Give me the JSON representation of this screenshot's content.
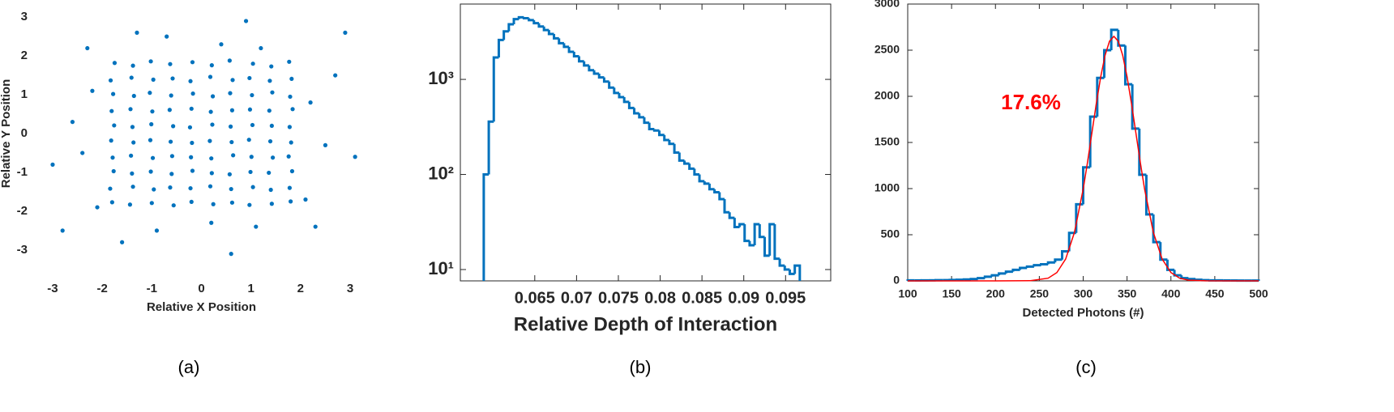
{
  "chart_data": [
    {
      "type": "scatter",
      "caption": "(a)",
      "xlabel": "Relative X Position",
      "ylabel": "Relative Y Position",
      "color": "#0072bd",
      "xlim": [
        -3.4,
        3.4
      ],
      "ylim": [
        -3.4,
        3.4
      ],
      "xticks": [
        -3,
        -2,
        -1,
        0,
        1,
        2,
        3
      ],
      "yticks": [
        -3,
        -2,
        -1,
        0,
        1,
        2,
        3
      ],
      "box": false,
      "x": [
        -1.75,
        -1.38,
        -1.02,
        -0.63,
        -0.18,
        0.21,
        0.57,
        1.04,
        1.41,
        1.77,
        -1.83,
        -1.41,
        -0.97,
        -0.58,
        -0.22,
        0.18,
        0.63,
        0.97,
        1.38,
        1.82,
        -1.78,
        -1.36,
        -1.04,
        -0.61,
        -0.17,
        0.23,
        0.58,
        1.02,
        1.43,
        1.79,
        -1.81,
        -1.43,
        -0.99,
        -0.64,
        -0.2,
        0.19,
        0.62,
        0.98,
        1.37,
        1.84,
        -1.76,
        -1.39,
        -1.01,
        -0.57,
        -0.23,
        0.22,
        0.59,
        1.03,
        1.42,
        1.78,
        -1.82,
        -1.37,
        -1.03,
        -0.62,
        -0.19,
        0.17,
        0.61,
        0.96,
        1.39,
        1.81,
        -1.79,
        -1.42,
        -0.98,
        -0.59,
        -0.21,
        0.2,
        0.64,
        1.01,
        1.44,
        1.76,
        -1.77,
        -1.4,
        -1.02,
        -0.6,
        -0.18,
        0.21,
        0.57,
        0.99,
        1.36,
        1.83,
        -1.84,
        -1.38,
        -0.96,
        -0.63,
        -0.22,
        0.18,
        0.6,
        1.04,
        1.4,
        1.78,
        -1.8,
        -1.44,
        -1,
        -0.56,
        -0.2,
        0.24,
        0.62,
        0.97,
        1.42,
        1.8,
        -2.2,
        -2.4,
        -2.1,
        -2.6,
        -3.0,
        -2.3,
        2.2,
        2.5,
        2.1,
        2.7,
        3.1,
        2.3,
        0.4,
        -0.7,
        1.2,
        -1.3,
        0.2,
        -0.9,
        1.1,
        -1.6,
        0.9,
        -2.8,
        2.9,
        0.6
      ],
      "y": [
        1.82,
        1.75,
        1.86,
        1.79,
        1.84,
        1.76,
        1.88,
        1.8,
        1.73,
        1.85,
        1.37,
        1.44,
        1.39,
        1.42,
        1.35,
        1.46,
        1.38,
        1.43,
        1.36,
        1.41,
        1.02,
        0.97,
        1.05,
        0.98,
        1.03,
        0.96,
        1.04,
        0.99,
        1.06,
        0.95,
        0.58,
        0.63,
        0.57,
        0.61,
        0.64,
        0.56,
        0.6,
        0.62,
        0.59,
        0.63,
        0.21,
        0.17,
        0.24,
        0.19,
        0.16,
        0.23,
        0.18,
        0.22,
        0.2,
        0.17,
        -0.18,
        -0.23,
        -0.17,
        -0.21,
        -0.24,
        -0.19,
        -0.22,
        -0.16,
        -0.2,
        -0.23,
        -0.62,
        -0.57,
        -0.63,
        -0.58,
        -0.61,
        -0.64,
        -0.56,
        -0.6,
        -0.62,
        -0.59,
        -0.97,
        -1.03,
        -0.98,
        -1.04,
        -0.96,
        -1.02,
        -1.05,
        -0.99,
        -1.01,
        -0.97,
        -1.42,
        -1.37,
        -1.44,
        -1.39,
        -1.41,
        -1.36,
        -1.43,
        -1.38,
        -1.45,
        -1.4,
        -1.77,
        -1.83,
        -1.79,
        -1.85,
        -1.76,
        -1.82,
        -1.78,
        -1.84,
        -1.81,
        -1.75,
        1.1,
        -0.5,
        -1.9,
        0.3,
        -0.8,
        2.2,
        0.8,
        -0.3,
        -1.7,
        1.5,
        -0.6,
        -2.4,
        2.3,
        2.5,
        2.2,
        2.6,
        -2.3,
        -2.5,
        -2.4,
        -2.8,
        2.9,
        -2.5,
        2.6,
        -3.1
      ]
    },
    {
      "type": "histogram",
      "caption": "(b)",
      "xlabel": "Relative Depth of Interaction",
      "color": "#0072bd",
      "ylog": true,
      "box": true,
      "xlim": [
        0.0561,
        0.1004
      ],
      "ylim": [
        7.6,
        6200
      ],
      "xticks": [
        0.065,
        0.07,
        0.075,
        0.08,
        0.085,
        0.09,
        0.095
      ],
      "yticks": [
        {
          "value": 10,
          "label": "10¹"
        },
        {
          "value": 100,
          "label": "10²"
        },
        {
          "value": 1000,
          "label": "10³"
        }
      ],
      "bins": [
        0.0589,
        0.0595,
        0.0601,
        0.0607,
        0.0613,
        0.0619,
        0.0625,
        0.0631,
        0.0637,
        0.0643,
        0.0649,
        0.0655,
        0.0661,
        0.0667,
        0.0673,
        0.0679,
        0.0685,
        0.0691,
        0.0697,
        0.0703,
        0.0709,
        0.0715,
        0.0721,
        0.0727,
        0.0733,
        0.0739,
        0.0745,
        0.0751,
        0.0757,
        0.0763,
        0.0769,
        0.0775,
        0.0781,
        0.0787,
        0.0793,
        0.0799,
        0.0805,
        0.0811,
        0.0817,
        0.0823,
        0.0829,
        0.0835,
        0.0841,
        0.0847,
        0.0853,
        0.0859,
        0.0865,
        0.0871,
        0.0877,
        0.0883,
        0.0889,
        0.0895,
        0.0901,
        0.0907,
        0.0913,
        0.0919,
        0.0925,
        0.0931,
        0.0937,
        0.0943,
        0.0949,
        0.0955,
        0.0961,
        0.0967
      ],
      "values": [
        100,
        360,
        1700,
        2600,
        3200,
        3800,
        4300,
        4500,
        4400,
        4200,
        3900,
        3600,
        3300,
        3000,
        2700,
        2400,
        2200,
        1950,
        1750,
        1550,
        1400,
        1250,
        1150,
        1050,
        950,
        820,
        720,
        650,
        580,
        500,
        440,
        400,
        350,
        300,
        290,
        260,
        230,
        210,
        170,
        140,
        130,
        115,
        100,
        85,
        80,
        70,
        65,
        55,
        40,
        35,
        28,
        30,
        20,
        18,
        30,
        22,
        14,
        30,
        13,
        11,
        10,
        9,
        11
      ]
    },
    {
      "type": "histogram",
      "caption": "(c)",
      "xlabel": "Detected Photons (#)",
      "color": "#0072bd",
      "ylog": false,
      "box": true,
      "xlim": [
        100,
        500
      ],
      "ylim": [
        0,
        3000
      ],
      "xticks": [
        100,
        150,
        200,
        250,
        300,
        350,
        400,
        450,
        500
      ],
      "yticks": [
        0,
        500,
        1000,
        1500,
        2000,
        2500,
        3000
      ],
      "bins": [
        100,
        108,
        116,
        124,
        132,
        140,
        148,
        156,
        164,
        172,
        180,
        188,
        196,
        204,
        212,
        220,
        228,
        236,
        244,
        252,
        260,
        268,
        276,
        284,
        292,
        300,
        308,
        316,
        324,
        332,
        340,
        348,
        356,
        364,
        372,
        380,
        388,
        396,
        404,
        412,
        420,
        428,
        436,
        444,
        452,
        460,
        468,
        476,
        484,
        492,
        500
      ],
      "values": [
        5,
        5,
        6,
        6,
        8,
        8,
        10,
        12,
        15,
        20,
        30,
        45,
        60,
        80,
        100,
        120,
        140,
        155,
        170,
        180,
        200,
        230,
        320,
        520,
        830,
        1230,
        1780,
        2200,
        2500,
        2720,
        2550,
        2130,
        1650,
        1150,
        720,
        420,
        230,
        120,
        60,
        30,
        20,
        12,
        8,
        6,
        5,
        4,
        4,
        3,
        3,
        3
      ],
      "fit": {
        "color": "#ff0000",
        "x": [
          100,
          200,
          240,
          260,
          270,
          280,
          290,
          300,
          305,
          310,
          315,
          320,
          325,
          330,
          335,
          340,
          345,
          350,
          355,
          360,
          365,
          370,
          380,
          390,
          400,
          410,
          420,
          440,
          500
        ],
        "y": [
          0,
          0,
          2,
          29,
          90,
          236,
          524,
          994,
          1290,
          1608,
          1924,
          2213,
          2446,
          2597,
          2650,
          2597,
          2446,
          2213,
          1924,
          1608,
          1290,
          994,
          524,
          236,
          90,
          29,
          8,
          1,
          0
        ]
      },
      "annotation": {
        "text": "17.6%",
        "color": "#ff0000"
      }
    }
  ]
}
